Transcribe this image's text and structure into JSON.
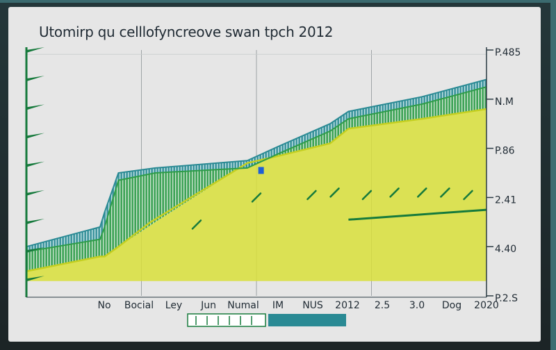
{
  "chart_data": {
    "type": "area",
    "title": "Utomirp qu celllofyncreove swan tpch 2012",
    "x_tick_labels": [
      "No",
      "Bocial",
      "Ley",
      "Jun",
      "Numal",
      "IM",
      "NUS",
      "2012",
      "2.5",
      "3.0",
      "Dog",
      "2020"
    ],
    "y_right_tick_labels": [
      "P.485",
      "N.M",
      "P.86",
      "2.41",
      "4.40",
      "P.2.S"
    ],
    "xlim": [
      0,
      100
    ],
    "ylim": [
      0,
      100
    ],
    "grid": true,
    "colors": {
      "yellow": "#d8df3a",
      "green": "#2e9c49",
      "teal": "#2a8a94",
      "dark_green": "#167a3c",
      "accent_blue": "#1f5fd6"
    },
    "series": [
      {
        "x": [
          0,
          16,
          17,
          20,
          27,
          48,
          55,
          66,
          70,
          86,
          100
        ],
        "values": [
          10,
          16,
          16,
          20,
          30,
          54,
          57,
          62,
          68,
          72,
          76
        ]
      },
      {
        "x": [
          0,
          16,
          17,
          20,
          28,
          48,
          55,
          66,
          70,
          86,
          100
        ],
        "values": [
          18,
          23,
          28,
          47,
          50,
          52,
          58,
          67,
          72,
          78,
          85
        ]
      },
      {
        "x": [
          0,
          16,
          17,
          20,
          28,
          48,
          55,
          66,
          70,
          86,
          100
        ],
        "values": [
          20,
          28,
          34,
          50,
          52,
          55,
          61,
          70,
          75,
          81,
          88
        ]
      },
      {
        "x": [
          70,
          85,
          100
        ],
        "values": [
          31,
          33,
          35
        ]
      }
    ],
    "markers": {
      "x": [
        37,
        50,
        62,
        67,
        74,
        80,
        86,
        91,
        96
      ],
      "values": [
        29,
        40,
        41,
        42,
        41,
        42,
        42,
        42,
        41
      ]
    }
  },
  "legend": {
    "items": [
      {
        "color": "#167a3c"
      },
      {
        "color": "#2a8a94"
      }
    ]
  }
}
